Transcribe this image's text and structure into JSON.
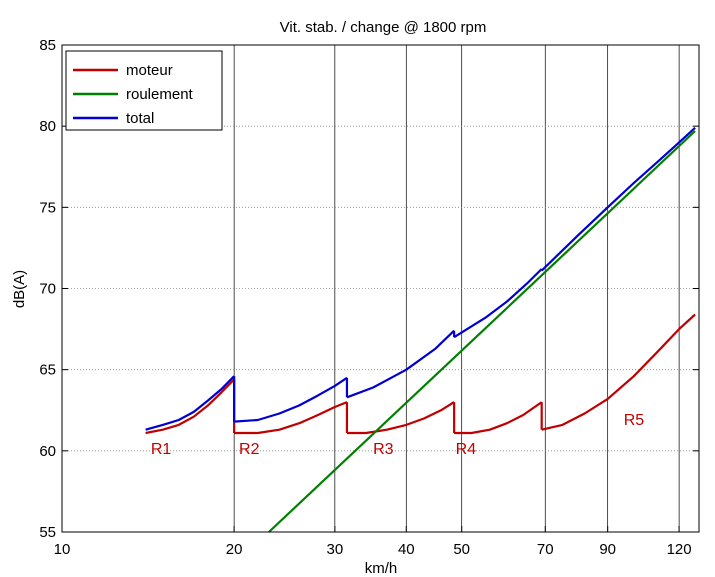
{
  "chart_data": {
    "type": "line",
    "title": "Vit. stab. /  change @ 1800 rpm",
    "xlabel": "km/h",
    "ylabel": "dB(A)",
    "x_scale": "log",
    "xlim": [
      10,
      130
    ],
    "ylim": [
      55,
      85
    ],
    "x_ticks": [
      10,
      20,
      30,
      40,
      50,
      70,
      90,
      120
    ],
    "y_ticks": [
      55,
      60,
      65,
      70,
      75,
      80,
      85
    ],
    "x_grid": [
      20,
      30,
      40,
      50,
      70,
      90,
      120
    ],
    "y_grid": [
      60,
      65,
      70,
      75,
      80
    ],
    "legend_position": "top-left",
    "series": [
      {
        "name": "moteur",
        "color": "#c00000",
        "segments": [
          [
            [
              14,
              61.1
            ],
            [
              15,
              61.3
            ],
            [
              16,
              61.6
            ],
            [
              17,
              62.1
            ],
            [
              18,
              62.8
            ],
            [
              19,
              63.6
            ],
            [
              20,
              64.4
            ]
          ],
          [
            [
              20,
              61.1
            ],
            [
              22,
              61.1
            ],
            [
              24,
              61.3
            ],
            [
              26,
              61.7
            ],
            [
              28,
              62.2
            ],
            [
              30,
              62.7
            ],
            [
              31.5,
              63.0
            ]
          ],
          [
            [
              31.5,
              61.1
            ],
            [
              34,
              61.1
            ],
            [
              37,
              61.3
            ],
            [
              40,
              61.6
            ],
            [
              43,
              62.0
            ],
            [
              46,
              62.5
            ],
            [
              48.5,
              63.0
            ]
          ],
          [
            [
              48.5,
              61.1
            ],
            [
              52,
              61.1
            ],
            [
              56,
              61.3
            ],
            [
              60,
              61.7
            ],
            [
              64,
              62.2
            ],
            [
              69,
              63.0
            ]
          ],
          [
            [
              69,
              61.3
            ],
            [
              75,
              61.6
            ],
            [
              82,
              62.3
            ],
            [
              90,
              63.2
            ],
            [
              100,
              64.6
            ],
            [
              110,
              66.1
            ],
            [
              120,
              67.5
            ],
            [
              128,
              68.4
            ]
          ]
        ]
      },
      {
        "name": "roulement",
        "color": "#008000",
        "segments": [
          [
            [
              23,
              55.0
            ],
            [
              128,
              79.7
            ]
          ]
        ]
      },
      {
        "name": "total",
        "color": "#0000d0",
        "segments": [
          [
            [
              14,
              61.3
            ],
            [
              15,
              61.6
            ],
            [
              16,
              61.9
            ],
            [
              17,
              62.4
            ],
            [
              18,
              63.1
            ],
            [
              19,
              63.8
            ],
            [
              20,
              64.6
            ]
          ],
          [
            [
              20,
              61.8
            ],
            [
              22,
              61.9
            ],
            [
              24,
              62.3
            ],
            [
              26,
              62.8
            ],
            [
              28,
              63.4
            ],
            [
              30,
              64.0
            ],
            [
              31.5,
              64.5
            ]
          ],
          [
            [
              31.5,
              63.3
            ],
            [
              35,
              63.9
            ],
            [
              40,
              65.0
            ],
            [
              45,
              66.3
            ],
            [
              48.5,
              67.4
            ]
          ],
          [
            [
              48.5,
              67.0
            ],
            [
              55,
              68.2
            ],
            [
              60,
              69.2
            ],
            [
              65,
              70.3
            ],
            [
              69,
              71.2
            ]
          ],
          [
            [
              69,
              71.1
            ],
            [
              80,
              73.3
            ],
            [
              90,
              75.0
            ],
            [
              100,
              76.5
            ],
            [
              110,
              77.8
            ],
            [
              120,
              79.0
            ],
            [
              128,
              79.9
            ]
          ]
        ]
      }
    ],
    "annotations": [
      {
        "text": "R1",
        "x": 14.3,
        "y": 59.8
      },
      {
        "text": "R2",
        "x": 20.4,
        "y": 59.8
      },
      {
        "text": "R3",
        "x": 35.0,
        "y": 59.8
      },
      {
        "text": "R4",
        "x": 48.8,
        "y": 59.8
      },
      {
        "text": "R5",
        "x": 96.0,
        "y": 61.6
      }
    ]
  }
}
